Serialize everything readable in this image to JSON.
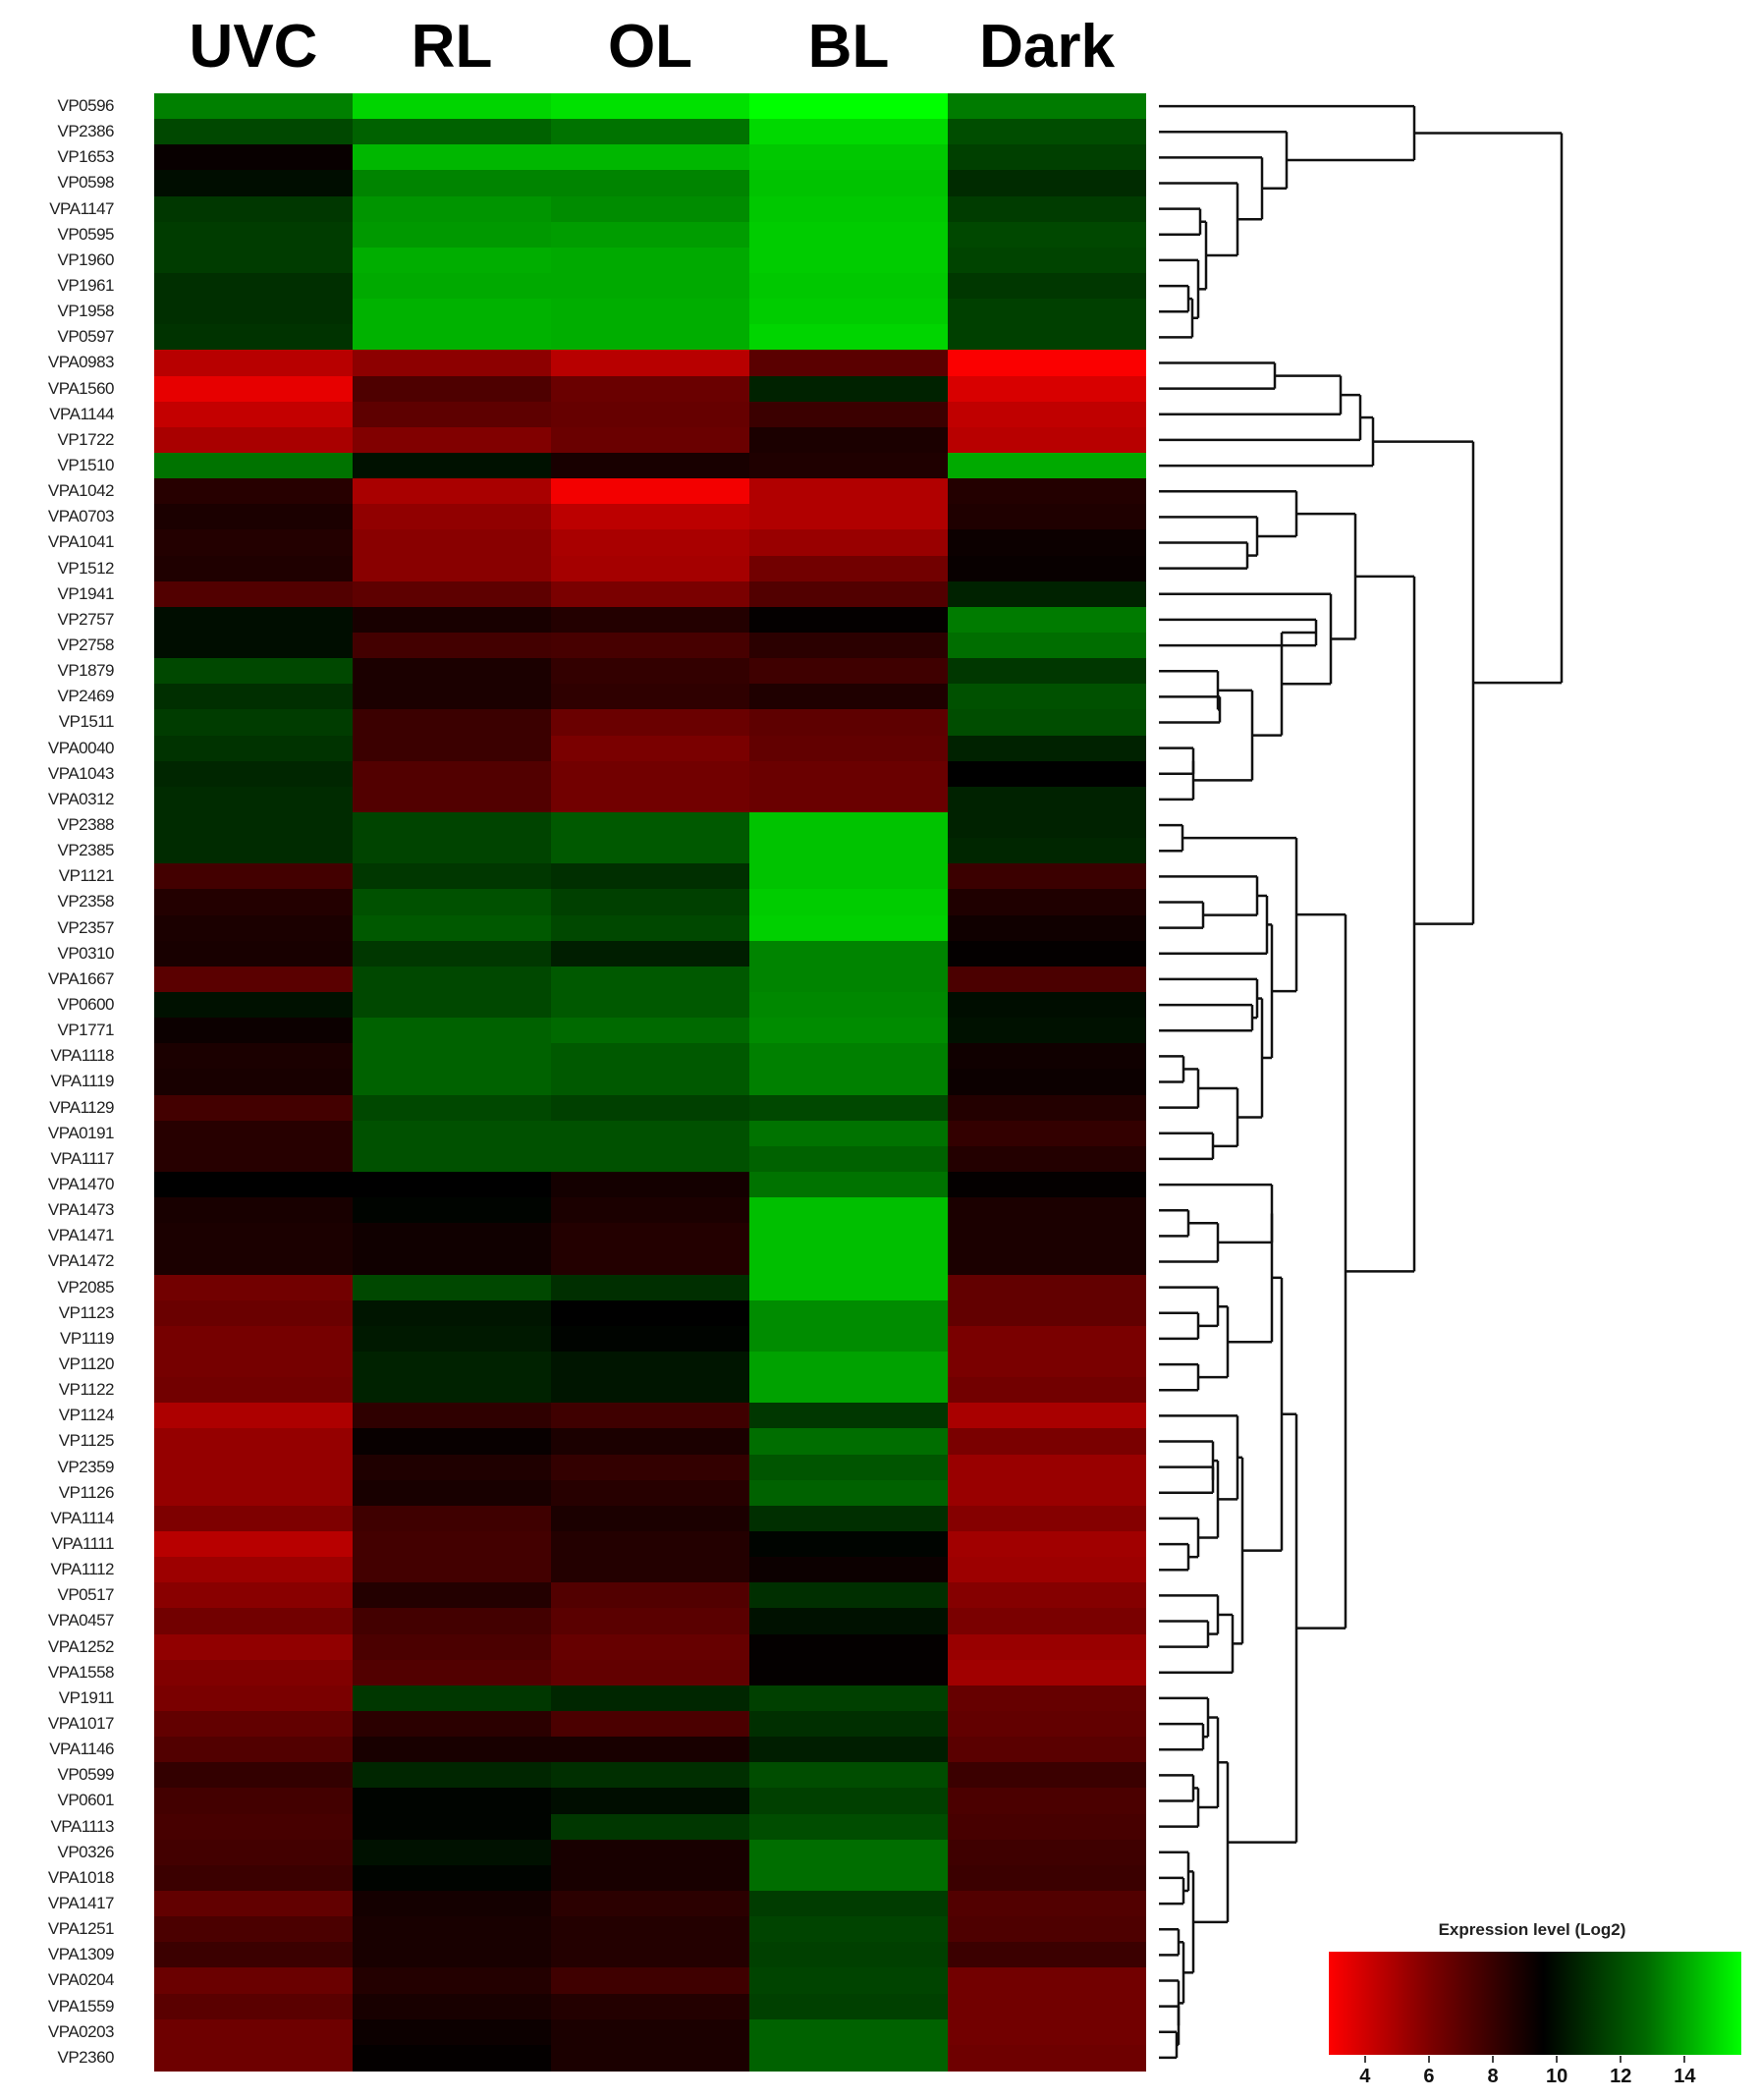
{
  "chart_data": {
    "type": "heatmap",
    "title": "",
    "columns": [
      "UVC",
      "RL",
      "OL",
      "BL",
      "Dark"
    ],
    "colorbar": {
      "title": "Expression level (Log2)",
      "ticks": [
        4,
        6,
        8,
        10,
        12,
        14
      ],
      "range": [
        3,
        15.5
      ],
      "colors": {
        "low": "#ff0000",
        "mid": "#000000",
        "high": "#00ff00"
      }
    },
    "dendrogram": "row clustering (hierarchical) shown on right",
    "rows": [
      {
        "gene": "VP0596",
        "values": [
          12.5,
          14.5,
          14.8,
          15.5,
          12.4
        ]
      },
      {
        "gene": "VP2386",
        "values": [
          11.2,
          11.8,
          12.2,
          14.6,
          11.3
        ]
      },
      {
        "gene": "VP1653",
        "values": [
          9.3,
          13.8,
          13.8,
          14.2,
          11.0
        ]
      },
      {
        "gene": "VP0598",
        "values": [
          9.8,
          12.6,
          12.6,
          14.1,
          10.5
        ]
      },
      {
        "gene": "VPA1147",
        "values": [
          10.8,
          13.0,
          12.8,
          14.2,
          10.9
        ]
      },
      {
        "gene": "VP0595",
        "values": [
          10.9,
          13.1,
          13.2,
          14.3,
          11.2
        ]
      },
      {
        "gene": "VP1960",
        "values": [
          10.9,
          13.6,
          13.5,
          14.3,
          11.1
        ]
      },
      {
        "gene": "VP1961",
        "values": [
          10.6,
          13.5,
          13.5,
          14.2,
          10.8
        ]
      },
      {
        "gene": "VP1958",
        "values": [
          10.6,
          13.7,
          13.6,
          14.3,
          11.0
        ]
      },
      {
        "gene": "VP0597",
        "values": [
          10.7,
          13.7,
          13.6,
          14.5,
          11.0
        ]
      },
      {
        "gene": "VPA0983",
        "values": [
          4.8,
          5.9,
          4.8,
          7.2,
          3.1
        ]
      },
      {
        "gene": "VPA1560",
        "values": [
          3.6,
          7.5,
          6.8,
          10.3,
          4.0
        ]
      },
      {
        "gene": "VPA1144",
        "values": [
          4.5,
          7.1,
          6.9,
          8.0,
          4.6
        ]
      },
      {
        "gene": "VP1722",
        "values": [
          5.2,
          6.2,
          6.8,
          8.8,
          4.8
        ]
      },
      {
        "gene": "VP1510",
        "values": [
          12.2,
          9.9,
          8.9,
          8.7,
          13.5
        ]
      },
      {
        "gene": "VPA1042",
        "values": [
          8.5,
          5.2,
          3.3,
          5.0,
          8.6
        ]
      },
      {
        "gene": "VPA0703",
        "values": [
          8.8,
          5.8,
          4.7,
          5.0,
          8.7
        ]
      },
      {
        "gene": "VPA1041",
        "values": [
          8.6,
          6.0,
          5.2,
          5.6,
          9.2
        ]
      },
      {
        "gene": "VP1512",
        "values": [
          8.7,
          6.0,
          5.3,
          6.6,
          9.3
        ]
      },
      {
        "gene": "VP1941",
        "values": [
          7.4,
          7.1,
          6.4,
          7.4,
          10.3
        ]
      },
      {
        "gene": "VP2757",
        "values": [
          9.8,
          8.9,
          8.6,
          9.4,
          12.4
        ]
      },
      {
        "gene": "VP2758",
        "values": [
          9.8,
          7.8,
          7.7,
          8.4,
          12.1
        ]
      },
      {
        "gene": "VP1879",
        "values": [
          11.2,
          8.8,
          8.2,
          7.9,
          10.8
        ]
      },
      {
        "gene": "VP2469",
        "values": [
          10.6,
          8.8,
          8.3,
          8.7,
          11.4
        ]
      },
      {
        "gene": "VP1511",
        "values": [
          10.9,
          8.0,
          6.8,
          7.1,
          11.3
        ]
      },
      {
        "gene": "VPA0040",
        "values": [
          10.7,
          8.0,
          6.4,
          7.0,
          10.3
        ]
      },
      {
        "gene": "VPA1043",
        "values": [
          10.4,
          7.4,
          6.6,
          6.8,
          9.5
        ]
      },
      {
        "gene": "VPA0312",
        "values": [
          10.5,
          7.4,
          6.6,
          6.8,
          10.3
        ]
      },
      {
        "gene": "VP2388",
        "values": [
          10.5,
          11.1,
          11.6,
          14.1,
          10.3
        ]
      },
      {
        "gene": "VP2385",
        "values": [
          10.5,
          11.1,
          11.6,
          14.1,
          10.4
        ]
      },
      {
        "gene": "VP1121",
        "values": [
          7.8,
          10.8,
          10.6,
          14.1,
          8.0
        ]
      },
      {
        "gene": "VP2358",
        "values": [
          8.6,
          11.4,
          11.0,
          14.3,
          8.7
        ]
      },
      {
        "gene": "VP2357",
        "values": [
          8.8,
          11.6,
          11.2,
          14.4,
          9.1
        ]
      },
      {
        "gene": "VP0310",
        "values": [
          8.9,
          10.8,
          10.2,
          12.6,
          9.4
        ]
      },
      {
        "gene": "VPA1667",
        "values": [
          7.2,
          11.2,
          11.6,
          12.6,
          7.6
        ]
      },
      {
        "gene": "VP0600",
        "values": [
          9.9,
          11.2,
          11.6,
          12.7,
          9.8
        ]
      },
      {
        "gene": "VP1771",
        "values": [
          9.2,
          11.8,
          12.0,
          12.8,
          9.9
        ]
      },
      {
        "gene": "VPA1118",
        "values": [
          8.8,
          11.8,
          11.6,
          12.5,
          9.1
        ]
      },
      {
        "gene": "VPA1119",
        "values": [
          8.9,
          11.8,
          11.6,
          12.5,
          9.2
        ]
      },
      {
        "gene": "VPA1129",
        "values": [
          7.8,
          11.2,
          11.0,
          11.2,
          8.6
        ]
      },
      {
        "gene": "VPA0191",
        "values": [
          8.5,
          11.4,
          11.4,
          12.2,
          8.2
        ]
      },
      {
        "gene": "VPA1117",
        "values": [
          8.5,
          11.4,
          11.4,
          11.8,
          8.6
        ]
      },
      {
        "gene": "VPA1470",
        "values": [
          9.5,
          9.5,
          9.0,
          12.2,
          9.4
        ]
      },
      {
        "gene": "VPA1473",
        "values": [
          8.9,
          9.6,
          8.8,
          14.0,
          8.8
        ]
      },
      {
        "gene": "VPA1471",
        "values": [
          8.8,
          9.1,
          8.6,
          14.0,
          8.8
        ]
      },
      {
        "gene": "VPA1472",
        "values": [
          8.8,
          9.1,
          8.6,
          14.0,
          8.8
        ]
      },
      {
        "gene": "VP2085",
        "values": [
          6.6,
          11.2,
          10.6,
          14.0,
          7.0
        ]
      },
      {
        "gene": "VP1123",
        "values": [
          6.8,
          10.0,
          9.5,
          12.8,
          7.0
        ]
      },
      {
        "gene": "VP1119",
        "values": [
          6.5,
          10.1,
          9.6,
          12.8,
          6.4
        ]
      },
      {
        "gene": "VP1120",
        "values": [
          6.5,
          10.3,
          10.0,
          13.3,
          6.4
        ]
      },
      {
        "gene": "VP1122",
        "values": [
          6.6,
          10.3,
          10.0,
          13.3,
          6.6
        ]
      },
      {
        "gene": "VP1124",
        "values": [
          5.1,
          8.3,
          7.9,
          10.8,
          5.2
        ]
      },
      {
        "gene": "VP1125",
        "values": [
          5.7,
          9.3,
          8.8,
          12.1,
          6.4
        ]
      },
      {
        "gene": "VP2359",
        "values": [
          5.7,
          8.7,
          8.2,
          11.5,
          5.6
        ]
      },
      {
        "gene": "VP1126",
        "values": [
          5.7,
          8.9,
          8.5,
          11.8,
          5.6
        ]
      },
      {
        "gene": "VPA1114",
        "values": [
          6.3,
          7.9,
          8.8,
          10.6,
          6.1
        ]
      },
      {
        "gene": "VPA1111",
        "values": [
          4.8,
          7.8,
          8.6,
          9.6,
          5.4
        ]
      },
      {
        "gene": "VPA1112",
        "values": [
          5.5,
          7.8,
          8.6,
          9.2,
          5.5
        ]
      },
      {
        "gene": "VP0517",
        "values": [
          6.0,
          8.6,
          7.4,
          10.6,
          6.1
        ]
      },
      {
        "gene": "VPA0457",
        "values": [
          6.6,
          7.8,
          7.2,
          9.9,
          6.4
        ]
      },
      {
        "gene": "VPA1252",
        "values": [
          5.8,
          7.6,
          6.9,
          9.4,
          5.6
        ]
      },
      {
        "gene": "VPA1558",
        "values": [
          6.2,
          7.4,
          7.0,
          9.4,
          5.4
        ]
      },
      {
        "gene": "VP1911",
        "values": [
          6.4,
          10.8,
          10.4,
          11.0,
          6.9
        ]
      },
      {
        "gene": "VPA1017",
        "values": [
          7.0,
          8.4,
          7.6,
          10.6,
          7.0
        ]
      },
      {
        "gene": "VPA1146",
        "values": [
          7.4,
          8.9,
          8.9,
          10.2,
          7.2
        ]
      },
      {
        "gene": "VP0599",
        "values": [
          8.2,
          10.4,
          10.6,
          11.3,
          8.0
        ]
      },
      {
        "gene": "VP0601",
        "values": [
          7.8,
          9.6,
          9.8,
          11.0,
          7.6
        ]
      },
      {
        "gene": "VPA1113",
        "values": [
          7.7,
          9.6,
          10.8,
          11.3,
          7.7
        ]
      },
      {
        "gene": "VP0326",
        "values": [
          7.8,
          9.9,
          8.9,
          12.1,
          7.9
        ]
      },
      {
        "gene": "VPA1018",
        "values": [
          8.0,
          9.6,
          8.9,
          12.1,
          8.0
        ]
      },
      {
        "gene": "VPA1417",
        "values": [
          7.0,
          9.0,
          8.4,
          10.9,
          7.4
        ]
      },
      {
        "gene": "VPA1251",
        "values": [
          7.6,
          8.9,
          8.6,
          11.1,
          7.5
        ]
      },
      {
        "gene": "VPA1309",
        "values": [
          8.0,
          8.9,
          8.6,
          11.0,
          8.0
        ]
      },
      {
        "gene": "VPA0204",
        "values": [
          6.8,
          8.6,
          7.9,
          11.1,
          6.6
        ]
      },
      {
        "gene": "VPA1559",
        "values": [
          7.2,
          8.9,
          8.6,
          11.0,
          6.6
        ]
      },
      {
        "gene": "VPA0203",
        "values": [
          6.7,
          9.2,
          8.8,
          11.8,
          6.6
        ]
      },
      {
        "gene": "VP2360",
        "values": [
          6.7,
          9.4,
          8.8,
          11.8,
          6.7
        ]
      }
    ]
  },
  "header": {
    "columns": [
      "UVC",
      "RL",
      "OL",
      "BL",
      "Dark"
    ]
  },
  "legend": {
    "title": "Expression level (Log2)",
    "ticks": [
      "4",
      "6",
      "8",
      "10",
      "12",
      "14"
    ]
  }
}
